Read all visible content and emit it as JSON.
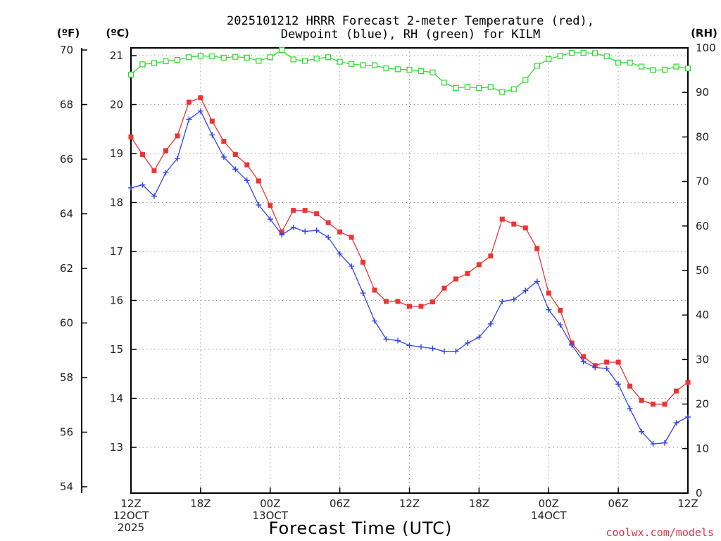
{
  "chart_data": {
    "type": "line",
    "title": [
      "2025101212 HRRR Forecast 2-meter Temperature (red),",
      "Dewpoint (blue), RH (green) for KILM"
    ],
    "units": {
      "fahrenheit": "(ºF)",
      "celsius": "(ºC)",
      "rh": "(RH)"
    },
    "xlabel": "Forecast Time (UTC)",
    "credit": "coolwx.com/models",
    "x_ticks": [
      {
        "hour": 0,
        "lines": [
          "12Z",
          "12OCT",
          "2025"
        ]
      },
      {
        "hour": 6,
        "lines": [
          "18Z"
        ]
      },
      {
        "hour": 12,
        "lines": [
          "00Z",
          "13OCT"
        ]
      },
      {
        "hour": 18,
        "lines": [
          "06Z"
        ]
      },
      {
        "hour": 24,
        "lines": [
          "12Z"
        ]
      },
      {
        "hour": 30,
        "lines": [
          "18Z"
        ]
      },
      {
        "hour": 36,
        "lines": [
          "00Z",
          "14OCT"
        ]
      },
      {
        "hour": 42,
        "lines": [
          "06Z"
        ]
      },
      {
        "hour": 48,
        "lines": [
          "12Z"
        ]
      }
    ],
    "xlim": [
      0,
      48
    ],
    "fahrenheit_ticks": [
      "54",
      "56",
      "58",
      "60",
      "62",
      "64",
      "66",
      "68",
      "70"
    ],
    "celsius_ticks": [
      "13",
      "14",
      "15",
      "16",
      "17",
      "18",
      "19",
      "20",
      "21"
    ],
    "rh_ticks": [
      "0",
      "10",
      "20",
      "30",
      "40",
      "50",
      "60",
      "70",
      "80",
      "90",
      "100"
    ],
    "celsius_range": [
      12.05,
      21.15
    ],
    "rh_range": [
      0,
      100
    ],
    "grid": true,
    "series": [
      {
        "name": "Temperature",
        "color": "#ee3333",
        "axis": "celsius",
        "marker": "square-filled",
        "values": [
          19.34,
          18.98,
          18.65,
          19.06,
          19.36,
          20.05,
          20.14,
          19.66,
          19.25,
          18.98,
          18.77,
          18.44,
          17.94,
          17.4,
          17.84,
          17.84,
          17.77,
          17.59,
          17.4,
          17.29,
          16.78,
          16.21,
          15.98,
          15.98,
          15.88,
          15.88,
          15.97,
          16.25,
          16.44,
          16.55,
          16.73,
          16.91,
          17.66,
          17.56,
          17.48,
          17.06,
          16.15,
          15.8,
          15.13,
          14.85,
          14.67,
          14.74,
          14.74,
          14.25,
          13.96,
          13.88,
          13.88,
          14.15,
          14.33
        ]
      },
      {
        "name": "Dewpoint",
        "color": "#3344ee",
        "axis": "celsius",
        "marker": "plus",
        "values": [
          18.3,
          18.36,
          18.13,
          18.61,
          18.9,
          19.7,
          19.87,
          19.38,
          18.93,
          18.68,
          18.45,
          17.95,
          17.66,
          17.34,
          17.49,
          17.41,
          17.43,
          17.29,
          16.95,
          16.7,
          16.15,
          15.58,
          15.21,
          15.18,
          15.08,
          15.05,
          15.02,
          14.96,
          14.96,
          15.13,
          15.25,
          15.52,
          15.98,
          16.02,
          16.2,
          16.39,
          15.81,
          15.5,
          15.09,
          14.75,
          14.63,
          14.61,
          14.29,
          13.79,
          13.32,
          13.07,
          13.09,
          13.5,
          13.62
        ]
      },
      {
        "name": "RH",
        "color": "#33dd33",
        "axis": "rh",
        "marker": "square-open",
        "values": [
          94,
          96.3,
          96.6,
          97,
          97.3,
          97.9,
          98.2,
          98.1,
          97.8,
          98,
          97.8,
          97.1,
          97.9,
          99.5,
          97.4,
          97.1,
          97.6,
          97.9,
          96.9,
          96.4,
          96.1,
          96.1,
          95.4,
          95.2,
          95.1,
          94.8,
          94.5,
          92.2,
          91,
          91.2,
          91,
          91.2,
          90.1,
          90.7,
          92.8,
          96,
          97.5,
          98.2,
          98.9,
          98.9,
          98.8,
          98.1,
          96.7,
          96.7,
          95.8,
          95,
          95.1,
          95.8,
          95.4
        ]
      }
    ]
  }
}
